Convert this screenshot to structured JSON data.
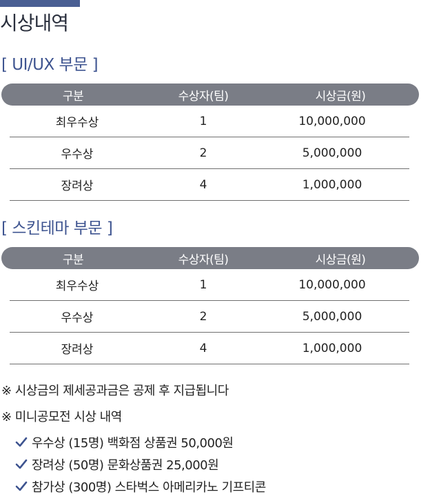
{
  "page": {
    "title": "시상내역"
  },
  "sections": [
    {
      "title": "[ UI/UX 부문 ]",
      "headers": [
        "구분",
        "수상자(팀)",
        "시상금(원)"
      ],
      "rows": [
        [
          "최우수상",
          "1",
          "10,000,000"
        ],
        [
          "우수상",
          "2",
          "5,000,000"
        ],
        [
          "장려상",
          "4",
          "1,000,000"
        ]
      ]
    },
    {
      "title": "[ 스킨테마 부문 ]",
      "headers": [
        "구분",
        "수상자(팀)",
        "시상금(원)"
      ],
      "rows": [
        [
          "최우수상",
          "1",
          "10,000,000"
        ],
        [
          "우수상",
          "2",
          "5,000,000"
        ],
        [
          "장려상",
          "4",
          "1,000,000"
        ]
      ]
    }
  ],
  "notes": [
    "※ 시상금의 제세공과금은 공제 후 지급됩니다",
    "※ 미니공모전 시상 내역"
  ],
  "mini_awards": [
    "우수상 (15명) 백화점 상품권 50,000원",
    "장려상 (50명) 문화상품권 25,000원",
    "참가상 (300명) 스타벅스 아메리카노 기프티콘"
  ],
  "colors": {
    "accent": "#4a5f93",
    "header_bg": "#7a7d86",
    "check": "#3e5490"
  },
  "icons": {
    "check": "check-icon"
  }
}
